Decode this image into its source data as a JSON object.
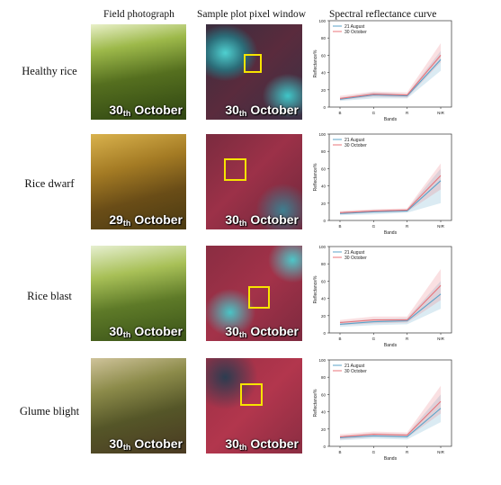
{
  "headers": {
    "col1": "Field photograph",
    "col2": "Sample plot pixel window",
    "col3": "Spectral reflectance curve"
  },
  "rows": [
    {
      "label": "Healthy rice",
      "day": "30",
      "day_suffix": "th",
      "month": "October"
    },
    {
      "label": "Rice dwarf",
      "day": "29",
      "day_suffix": "th",
      "month": "October"
    },
    {
      "label": "Rice blast",
      "day": "30",
      "day_suffix": "th",
      "month": "October"
    },
    {
      "label": "Glume blight",
      "day": "30",
      "day_suffix": "th",
      "month": "October"
    }
  ],
  "satellite_captions": [
    {
      "day": "30",
      "day_suffix": "th",
      "month": "October"
    },
    {
      "day": "30",
      "day_suffix": "th",
      "month": "October"
    },
    {
      "day": "30",
      "day_suffix": "th",
      "month": "October"
    },
    {
      "day": "30",
      "day_suffix": "th",
      "month": "October"
    }
  ],
  "chart_data": [
    {
      "type": "line",
      "title": "",
      "xlabel": "Bands",
      "ylabel": "Reflectance%",
      "categories": [
        "B",
        "G",
        "R",
        "NIR"
      ],
      "ylim": [
        0,
        100
      ],
      "yticks": [
        0,
        20,
        40,
        60,
        80,
        100
      ],
      "grid": false,
      "legend_position": "top-left",
      "series": [
        {
          "name": "21 August",
          "color": "#5ba3c9",
          "values": [
            9,
            14,
            13,
            55
          ],
          "lower": [
            7,
            10,
            10,
            42
          ],
          "upper": [
            11,
            17,
            15,
            65
          ]
        },
        {
          "name": "30 October",
          "color": "#e8737a",
          "values": [
            10,
            15,
            14,
            60
          ],
          "lower": [
            8,
            12,
            11,
            52
          ],
          "upper": [
            13,
            18,
            17,
            74
          ]
        }
      ]
    },
    {
      "type": "line",
      "title": "",
      "xlabel": "Bands",
      "ylabel": "Reflectance%",
      "categories": [
        "B",
        "G",
        "R",
        "NIR"
      ],
      "ylim": [
        0,
        100
      ],
      "yticks": [
        0,
        20,
        40,
        60,
        80,
        100
      ],
      "grid": false,
      "legend_position": "top-left",
      "series": [
        {
          "name": "21 August",
          "color": "#5ba3c9",
          "values": [
            8,
            10,
            11,
            46
          ],
          "lower": [
            6,
            7,
            9,
            20
          ],
          "upper": [
            10,
            12,
            13,
            60
          ]
        },
        {
          "name": "30 October",
          "color": "#e8737a",
          "values": [
            9,
            11,
            12,
            52
          ],
          "lower": [
            7,
            9,
            10,
            36
          ],
          "upper": [
            11,
            13,
            14,
            66
          ]
        }
      ]
    },
    {
      "type": "line",
      "title": "",
      "xlabel": "Bands",
      "ylabel": "Reflectance%",
      "categories": [
        "B",
        "G",
        "R",
        "NIR"
      ],
      "ylim": [
        0,
        100
      ],
      "yticks": [
        0,
        20,
        40,
        60,
        80,
        100
      ],
      "grid": false,
      "legend_position": "top-left",
      "series": [
        {
          "name": "21 August",
          "color": "#5ba3c9",
          "values": [
            10,
            13,
            14,
            45
          ],
          "lower": [
            7,
            9,
            10,
            28
          ],
          "upper": [
            13,
            16,
            17,
            60
          ]
        },
        {
          "name": "30 October",
          "color": "#e8737a",
          "values": [
            12,
            15,
            15,
            55
          ],
          "lower": [
            9,
            11,
            12,
            38
          ],
          "upper": [
            15,
            19,
            19,
            74
          ]
        }
      ]
    },
    {
      "type": "line",
      "title": "",
      "xlabel": "Bands",
      "ylabel": "Reflectance%",
      "categories": [
        "B",
        "G",
        "R",
        "NIR"
      ],
      "ylim": [
        0,
        100
      ],
      "yticks": [
        0,
        20,
        40,
        60,
        80,
        100
      ],
      "grid": false,
      "legend_position": "top-left",
      "series": [
        {
          "name": "21 August",
          "color": "#5ba3c9",
          "values": [
            10,
            12,
            11,
            44
          ],
          "lower": [
            7,
            9,
            8,
            28
          ],
          "upper": [
            12,
            15,
            14,
            60
          ]
        },
        {
          "name": "30 October",
          "color": "#e8737a",
          "values": [
            11,
            14,
            13,
            52
          ],
          "lower": [
            8,
            11,
            10,
            38
          ],
          "upper": [
            14,
            17,
            16,
            70
          ]
        }
      ]
    }
  ]
}
